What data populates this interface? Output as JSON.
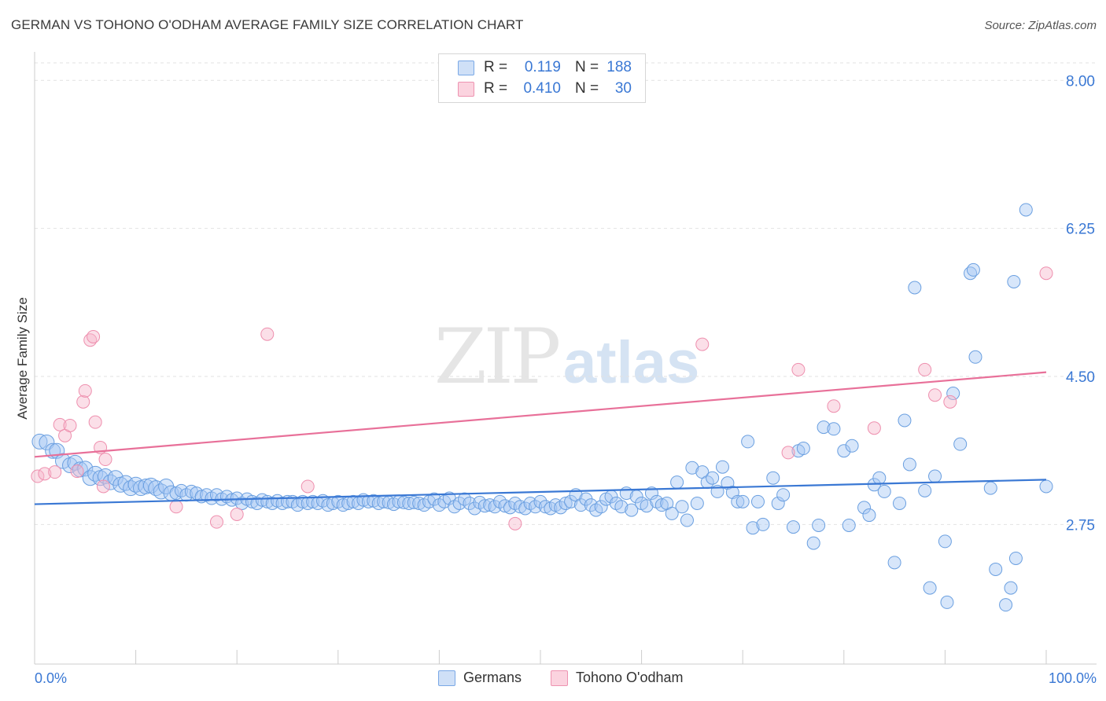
{
  "title": "GERMAN VS TOHONO O'ODHAM AVERAGE FAMILY SIZE CORRELATION CHART",
  "source": "Source: ZipAtlas.com",
  "watermark": {
    "zip": "ZIP",
    "atlas": "atlas"
  },
  "legend": {
    "rows": [
      {
        "label": "R =",
        "r": "0.119",
        "n_label": "N =",
        "n": "188",
        "color": "#a7c8f3"
      },
      {
        "label": "R =",
        "r": "0.410",
        "n_label": "N =",
        "n": "30",
        "color": "#f6b8cb"
      }
    ]
  },
  "bottom_legend": [
    {
      "name": "Germans",
      "color": "#a7c8f3"
    },
    {
      "name": "Tohono O'odham",
      "color": "#f6b8cb"
    }
  ],
  "chart_data": {
    "type": "scatter",
    "title": "GERMAN VS TOHONO O'ODHAM AVERAGE FAMILY SIZE CORRELATION CHART",
    "xlabel": "",
    "ylabel": "Average Family Size",
    "xlim": [
      0,
      100
    ],
    "ylim": [
      1.1,
      8.3
    ],
    "x_tick_labels": [
      "0.0%",
      "100.0%"
    ],
    "y_ticks": [
      2.75,
      4.5,
      6.25,
      8.0
    ],
    "y_tick_labels": [
      "2.75",
      "4.50",
      "6.25",
      "8.00"
    ],
    "grid": "horizontal dashed",
    "colors": {
      "germans": "#3a78d4",
      "tohono": "#e87099",
      "axis_text": "#3a78d4"
    },
    "series": [
      {
        "name": "Germans",
        "color": "#6a9fe0",
        "trend": {
          "x": [
            0,
            100
          ],
          "y": [
            2.99,
            3.28
          ]
        },
        "points": [
          [
            0.5,
            3.73
          ],
          [
            1.2,
            3.72
          ],
          [
            1.8,
            3.62
          ],
          [
            2.2,
            3.62
          ],
          [
            2.8,
            3.5
          ],
          [
            3.5,
            3.45
          ],
          [
            4,
            3.48
          ],
          [
            4.5,
            3.4
          ],
          [
            5,
            3.41
          ],
          [
            5.5,
            3.3
          ],
          [
            6,
            3.35
          ],
          [
            6.5,
            3.3
          ],
          [
            7,
            3.32
          ],
          [
            7.5,
            3.25
          ],
          [
            8,
            3.3
          ],
          [
            8.5,
            3.22
          ],
          [
            9,
            3.24
          ],
          [
            9.5,
            3.18
          ],
          [
            10,
            3.22
          ],
          [
            10.5,
            3.18
          ],
          [
            11,
            3.2
          ],
          [
            11.5,
            3.21
          ],
          [
            12,
            3.18
          ],
          [
            12.5,
            3.14
          ],
          [
            13,
            3.2
          ],
          [
            13.5,
            3.12
          ],
          [
            14,
            3.12
          ],
          [
            14.5,
            3.15
          ],
          [
            15,
            3.1
          ],
          [
            15.5,
            3.14
          ],
          [
            16,
            3.12
          ],
          [
            16.5,
            3.08
          ],
          [
            17,
            3.1
          ],
          [
            17.5,
            3.06
          ],
          [
            18,
            3.1
          ],
          [
            18.5,
            3.05
          ],
          [
            19,
            3.08
          ],
          [
            19.5,
            3.04
          ],
          [
            20,
            3.06
          ],
          [
            20.5,
            3.0
          ],
          [
            21,
            3.05
          ],
          [
            21.5,
            3.02
          ],
          [
            22,
            3.0
          ],
          [
            22.5,
            3.04
          ],
          [
            23,
            3.02
          ],
          [
            23.5,
            3.0
          ],
          [
            24,
            3.03
          ],
          [
            24.5,
            3.0
          ],
          [
            25,
            3.02
          ],
          [
            25.5,
            3.02
          ],
          [
            26,
            2.98
          ],
          [
            26.5,
            3.02
          ],
          [
            27,
            3.0
          ],
          [
            27.5,
            3.02
          ],
          [
            28,
            3.0
          ],
          [
            28.5,
            3.03
          ],
          [
            29,
            2.98
          ],
          [
            29.5,
            3.0
          ],
          [
            30,
            3.02
          ],
          [
            30.5,
            2.98
          ],
          [
            31,
            3.0
          ],
          [
            31.5,
            3.02
          ],
          [
            32,
            3.0
          ],
          [
            32.5,
            3.04
          ],
          [
            33,
            3.02
          ],
          [
            33.5,
            3.03
          ],
          [
            34,
            3.0
          ],
          [
            34.5,
            3.02
          ],
          [
            35,
            3.01
          ],
          [
            35.5,
            2.99
          ],
          [
            36,
            3.02
          ],
          [
            36.5,
            3.01
          ],
          [
            37,
            3.0
          ],
          [
            37.5,
            3.01
          ],
          [
            38,
            3.0
          ],
          [
            38.5,
            2.98
          ],
          [
            39,
            3.02
          ],
          [
            39.5,
            3.05
          ],
          [
            40,
            2.98
          ],
          [
            40.5,
            3.02
          ],
          [
            41,
            3.06
          ],
          [
            41.5,
            2.96
          ],
          [
            42,
            3.0
          ],
          [
            42.5,
            3.05
          ],
          [
            43,
            3.0
          ],
          [
            43.5,
            2.94
          ],
          [
            44,
            3.01
          ],
          [
            44.5,
            2.97
          ],
          [
            45,
            2.98
          ],
          [
            45.5,
            2.96
          ],
          [
            46,
            3.02
          ],
          [
            46.5,
            2.97
          ],
          [
            47,
            2.95
          ],
          [
            47.5,
            3.0
          ],
          [
            48,
            2.96
          ],
          [
            48.5,
            2.94
          ],
          [
            49,
            3.0
          ],
          [
            49.5,
            2.96
          ],
          [
            50,
            3.02
          ],
          [
            50.5,
            2.96
          ],
          [
            51,
            2.94
          ],
          [
            51.5,
            2.98
          ],
          [
            52,
            2.95
          ],
          [
            52.5,
            3.0
          ],
          [
            53,
            3.02
          ],
          [
            53.5,
            3.1
          ],
          [
            54,
            2.98
          ],
          [
            54.5,
            3.05
          ],
          [
            55,
            2.98
          ],
          [
            55.5,
            2.92
          ],
          [
            56,
            2.96
          ],
          [
            56.5,
            3.05
          ],
          [
            57,
            3.08
          ],
          [
            57.5,
            3.0
          ],
          [
            58,
            2.96
          ],
          [
            58.5,
            3.12
          ],
          [
            59,
            2.92
          ],
          [
            59.5,
            3.08
          ],
          [
            60,
            3.0
          ],
          [
            60.5,
            2.97
          ],
          [
            61,
            3.12
          ],
          [
            61.5,
            3.02
          ],
          [
            62,
            2.98
          ],
          [
            62.5,
            3.0
          ],
          [
            63,
            2.88
          ],
          [
            63.5,
            3.25
          ],
          [
            64,
            2.96
          ],
          [
            64.5,
            2.8
          ],
          [
            65,
            3.42
          ],
          [
            65.5,
            3.0
          ],
          [
            66,
            3.37
          ],
          [
            66.5,
            3.25
          ],
          [
            67,
            3.3
          ],
          [
            67.5,
            3.14
          ],
          [
            68,
            3.43
          ],
          [
            68.5,
            3.24
          ],
          [
            69,
            3.13
          ],
          [
            69.5,
            3.02
          ],
          [
            70,
            3.02
          ],
          [
            70.5,
            3.73
          ],
          [
            71,
            2.71
          ],
          [
            71.5,
            3.02
          ],
          [
            72,
            2.75
          ],
          [
            73,
            3.3
          ],
          [
            73.5,
            3.0
          ],
          [
            74,
            3.1
          ],
          [
            75,
            2.72
          ],
          [
            75.5,
            3.62
          ],
          [
            76,
            3.65
          ],
          [
            77,
            2.53
          ],
          [
            77.5,
            2.74
          ],
          [
            78,
            3.9
          ],
          [
            79,
            3.88
          ],
          [
            80,
            3.62
          ],
          [
            80.5,
            2.74
          ],
          [
            80.8,
            3.68
          ],
          [
            82,
            2.95
          ],
          [
            82.5,
            2.86
          ],
          [
            83,
            3.22
          ],
          [
            83.5,
            3.3
          ],
          [
            84,
            3.14
          ],
          [
            85,
            2.3
          ],
          [
            85.5,
            3.0
          ],
          [
            86,
            3.98
          ],
          [
            86.5,
            3.46
          ],
          [
            87,
            5.55
          ],
          [
            88,
            3.15
          ],
          [
            88.5,
            2.0
          ],
          [
            89,
            3.32
          ],
          [
            90,
            2.55
          ],
          [
            90.2,
            1.83
          ],
          [
            90.8,
            4.3
          ],
          [
            91.5,
            3.7
          ],
          [
            92.5,
            5.72
          ],
          [
            92.8,
            5.76
          ],
          [
            93,
            4.73
          ],
          [
            94.5,
            3.18
          ],
          [
            95,
            2.22
          ],
          [
            96,
            1.8
          ],
          [
            96.5,
            2.0
          ],
          [
            96.8,
            5.62
          ],
          [
            97,
            2.35
          ],
          [
            98,
            6.47
          ],
          [
            100,
            3.2
          ]
        ]
      },
      {
        "name": "Tohono O'odham",
        "color": "#ee8fae",
        "trend": {
          "x": [
            0,
            100
          ],
          "y": [
            3.55,
            4.55
          ]
        },
        "points": [
          [
            0.3,
            3.32
          ],
          [
            1,
            3.35
          ],
          [
            2,
            3.37
          ],
          [
            2.5,
            3.93
          ],
          [
            3,
            3.8
          ],
          [
            3.5,
            3.92
          ],
          [
            4.2,
            3.38
          ],
          [
            4.8,
            4.2
          ],
          [
            5,
            4.33
          ],
          [
            5.5,
            4.93
          ],
          [
            5.8,
            4.97
          ],
          [
            6,
            3.96
          ],
          [
            6.5,
            3.66
          ],
          [
            6.8,
            3.2
          ],
          [
            7,
            3.52
          ],
          [
            14,
            2.96
          ],
          [
            18,
            2.78
          ],
          [
            20,
            2.87
          ],
          [
            23,
            5.0
          ],
          [
            27,
            3.2
          ],
          [
            47.5,
            2.76
          ],
          [
            66,
            4.88
          ],
          [
            74.5,
            3.6
          ],
          [
            75.5,
            4.58
          ],
          [
            79,
            4.15
          ],
          [
            83,
            3.89
          ],
          [
            88,
            4.58
          ],
          [
            89,
            4.28
          ],
          [
            90.5,
            4.2
          ],
          [
            100,
            5.72
          ]
        ]
      }
    ]
  }
}
